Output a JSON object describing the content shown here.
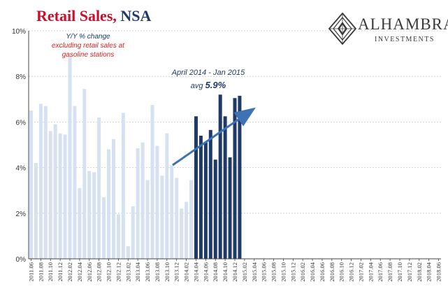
{
  "title": {
    "part1": "Retail Sales",
    "sep": ",",
    "part2": " NSA"
  },
  "logo": {
    "name": "ALHAMBRA",
    "sub": "INVESTMENTS",
    "icon": "lattice-diamond-icon"
  },
  "annotations": {
    "yoy_line1": "Y/Y % change",
    "yoy_line2": "excluding retail sales at",
    "yoy_line3": "gasoline stations",
    "period": "April 2014 - Jan 2015",
    "avg_prefix": "avg ",
    "avg_value": "5.9%"
  },
  "colors": {
    "light_bar": "#d6e2f1",
    "dark_bar": "#1f3a68",
    "arrow": "#3d72b4",
    "title_red": "#c8102e",
    "grid": "#c8c8c8"
  },
  "chart_data": {
    "type": "bar",
    "title": "Retail Sales, NSA",
    "subtitle": "Y/Y % change excluding retail sales at gasoline stations",
    "ylim": [
      0,
      10
    ],
    "yticks": [
      "0%",
      "2%",
      "4%",
      "6%",
      "8%",
      "10%"
    ],
    "grid": true,
    "tick_labels": [
      "2011.06",
      "2011.08",
      "2011.10",
      "2011.12",
      "2012.02",
      "2012.04",
      "2012.06",
      "2012.08",
      "2012.10",
      "2012.12",
      "2013.02",
      "2013.04",
      "2013.06",
      "2013.08",
      "2013.10",
      "2013.12",
      "2014.02",
      "2014.04",
      "2014.06",
      "2014.08",
      "2014.10",
      "2014.12",
      "2015.02",
      "2015.04",
      "2015.06",
      "2015.08",
      "2015.10",
      "2015.12",
      "2016.02",
      "2016.04",
      "2016.06",
      "2016.08",
      "2016.10",
      "2016.12",
      "2017.02",
      "2017.04",
      "2017.06",
      "2017.08",
      "2017.10",
      "2017.12",
      "2018.02",
      "2018.04",
      "2018.06"
    ],
    "categories": [
      "2011.06",
      "2011.07",
      "2011.08",
      "2011.09",
      "2011.10",
      "2011.11",
      "2011.12",
      "2012.01",
      "2012.02",
      "2012.03",
      "2012.04",
      "2012.05",
      "2012.06",
      "2012.07",
      "2012.08",
      "2012.09",
      "2012.10",
      "2012.11",
      "2012.12",
      "2013.01",
      "2013.02",
      "2013.03",
      "2013.04",
      "2013.05",
      "2013.06",
      "2013.07",
      "2013.08",
      "2013.09",
      "2013.10",
      "2013.11",
      "2013.12",
      "2014.01",
      "2014.02",
      "2014.03",
      "2014.04",
      "2014.05",
      "2014.06",
      "2014.07",
      "2014.08",
      "2014.09",
      "2014.10",
      "2014.11",
      "2014.12",
      "2015.01"
    ],
    "values": [
      6.5,
      4.2,
      6.8,
      6.7,
      5.6,
      5.9,
      5.5,
      5.45,
      8.9,
      6.7,
      3.1,
      7.45,
      3.85,
      3.8,
      6.2,
      2.7,
      4.8,
      5.25,
      1.95,
      6.4,
      0.55,
      2.3,
      4.85,
      5.1,
      3.45,
      6.75,
      4.95,
      3.65,
      5.5,
      4.1,
      3.55,
      2.2,
      2.5,
      3.45,
      6.25,
      5.4,
      5.1,
      5.65,
      4.35,
      7.2,
      6.25,
      4.45,
      7.05,
      7.15
    ],
    "highlight_from": "2014.04",
    "highlight_to": "2015.01"
  }
}
